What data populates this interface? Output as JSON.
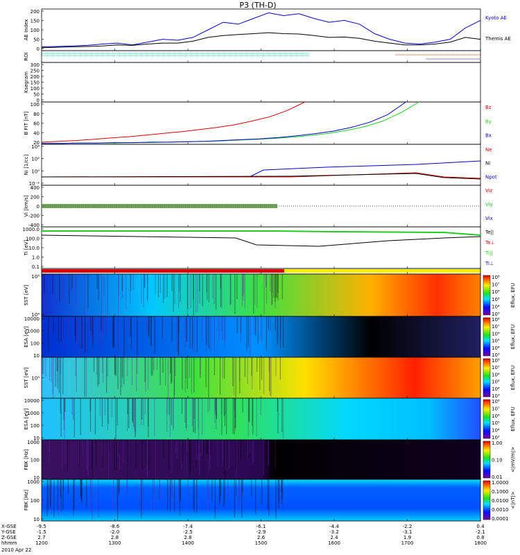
{
  "title": "P3 (TH-D)",
  "date_label": "2010 Apr 22",
  "colors": {
    "blue": "#0000cc",
    "black": "#000000",
    "red": "#dd0000",
    "green": "#22cc22",
    "purple": "#7a00a0"
  },
  "chart_data": {
    "type": "multi-panel",
    "x_axis": {
      "time_ticks": [
        "1200",
        "1300",
        "1400",
        "1500",
        "1600",
        "1700",
        "1800"
      ],
      "x_gse": [
        "-9.5",
        "-8.6",
        "-7.4",
        "-6.1",
        "-4.4",
        "-2.2",
        "0.4"
      ],
      "y_gse": [
        "-1.5",
        "-2.0",
        "-2.5",
        "-2.9",
        "-3.2",
        "-3.1",
        "-2.1"
      ],
      "z_gse": [
        "2.7",
        "2.8",
        "2.8",
        "2.6",
        "2.4",
        "1.9",
        "0.8"
      ],
      "row_labels": [
        "X-GSE",
        "Y-GSE",
        "Z-GSE",
        "hhmm"
      ]
    },
    "panels": [
      {
        "id": "ae",
        "type": "line",
        "ylabel": "AE Index",
        "yticks": [
          "0",
          "50",
          "100",
          "150",
          "200"
        ],
        "ylim": [
          0,
          220
        ],
        "series": [
          {
            "name": "Kyoto AE",
            "color": "#0000cc",
            "values": [
              20,
              22,
              25,
              28,
              35,
              40,
              30,
              45,
              60,
              55,
              70,
              110,
              150,
              140,
              170,
              200,
              185,
              195,
              170,
              150,
              160,
              140,
              90,
              60,
              40,
              35,
              45,
              60,
              120,
              160
            ]
          },
          {
            "name": "Themis AE",
            "color": "#000000",
            "values": [
              15,
              18,
              20,
              22,
              25,
              30,
              28,
              35,
              40,
              40,
              50,
              70,
              80,
              85,
              90,
              95,
              90,
              88,
              80,
              70,
              72,
              65,
              50,
              40,
              30,
              30,
              35,
              45,
              70,
              60
            ]
          }
        ]
      },
      {
        "id": "roi",
        "type": "flags",
        "ylabel": "ROI"
      },
      {
        "id": "kp",
        "type": "line",
        "ylabel": "Ksegram",
        "yticks": [
          "0",
          "50",
          "100",
          "150",
          "200",
          "250",
          "300"
        ],
        "ylim": [
          0,
          300
        ],
        "series": []
      },
      {
        "id": "bfit",
        "type": "line",
        "ylabel": "B FIT [nT]",
        "yticks": [
          "20",
          "40",
          "60",
          "80",
          "100"
        ],
        "ylim": [
          0,
          100
        ],
        "series": [
          {
            "name": "Bz",
            "color": "#dd0000",
            "values": [
              5,
              7,
              9,
              12,
              15,
              18,
              22,
              26,
              30,
              35,
              40,
              46,
              55,
              65,
              80,
              100
            ]
          },
          {
            "name": "By",
            "color": "#22cc22",
            "values": [
              2,
              2,
              3,
              3,
              3,
              4,
              4,
              5,
              6,
              7,
              8,
              10,
              12,
              14,
              17,
              21,
              26,
              33,
              42,
              55,
              75,
              100
            ]
          },
          {
            "name": "Bx",
            "color": "#0000cc",
            "values": [
              2,
              2,
              3,
              3,
              4,
              4,
              5,
              5,
              6,
              7,
              9,
              11,
              13,
              16,
              20,
              25,
              31,
              40,
              52,
              70,
              100
            ]
          }
        ]
      },
      {
        "id": "ni",
        "type": "line",
        "ylabel": "Ni [1/cc]",
        "yticks": [
          "10⁻²",
          "10⁰",
          "10²",
          "10⁴"
        ],
        "series_names": [
          "Ne",
          "Ni",
          "Npot"
        ]
      },
      {
        "id": "vi",
        "type": "line",
        "ylabel": "Vi [km/s]",
        "yticks": [
          "-400",
          "-200",
          "0",
          "200",
          "400"
        ],
        "ylim": [
          -450,
          450
        ],
        "series_names": [
          "Vix",
          "Viy",
          "Viz"
        ]
      },
      {
        "id": "ti",
        "type": "line",
        "ylabel": "Ti [eV]",
        "yticks": [
          "0.1",
          "1.0",
          "10.0",
          "100.0",
          "1000.0"
        ],
        "series_names": [
          "Te||",
          "Te⊥",
          "Ti||",
          "Ti⊥"
        ]
      },
      {
        "id": "mode",
        "type": "bar",
        "ylabel": ""
      },
      {
        "id": "sst_e",
        "type": "heatmap",
        "ylabel": "SST [eV]",
        "cbar_label": "Eflux, EFU",
        "yticks": [
          "10⁴",
          "10⁵"
        ],
        "cbar_ticks": [
          "10³",
          "10⁴",
          "10⁵",
          "10⁶",
          "10⁷",
          "10⁸"
        ]
      },
      {
        "id": "esa_e",
        "type": "heatmap",
        "ylabel": "ESA [eV]",
        "cbar_label": "Eflux, EFU",
        "yticks": [
          "10",
          "100",
          "1000",
          "10000"
        ],
        "cbar_ticks": [
          "10³",
          "10⁴",
          "10⁵",
          "10⁶",
          "10⁷",
          "10⁸"
        ]
      },
      {
        "id": "sst_i",
        "type": "heatmap",
        "ylabel": "SST [eV]",
        "cbar_label": "Eflux, EFU",
        "yticks": [
          "10⁵"
        ],
        "cbar_ticks": [
          "10³",
          "10⁴",
          "10⁵",
          "10⁶",
          "10⁷",
          "10⁸"
        ]
      },
      {
        "id": "esa_i",
        "type": "heatmap",
        "ylabel": "ESA [eV]",
        "cbar_label": "Eflux, EFU",
        "yticks": [
          "10",
          "100",
          "1000",
          "10000"
        ],
        "cbar_ticks": [
          "10³",
          "10⁴",
          "10⁵",
          "10⁶",
          "10⁷",
          "10⁸"
        ]
      },
      {
        "id": "fbk_e",
        "type": "heatmap",
        "ylabel": "FBK [Hz]",
        "cbar_label": "<|mV/m|>",
        "yticks": [
          "10",
          "100",
          "1000"
        ],
        "cbar_ticks": [
          "0.01",
          "0.10",
          "1.00"
        ]
      },
      {
        "id": "fbk_b",
        "type": "heatmap",
        "ylabel": "FBK [Hz]",
        "cbar_label": "<|nT|>",
        "yticks": [
          "10",
          "100",
          "1000"
        ],
        "cbar_ticks": [
          "0.0001",
          "0.0010",
          "0.0100",
          "0.1000",
          "1.0000"
        ]
      }
    ]
  }
}
